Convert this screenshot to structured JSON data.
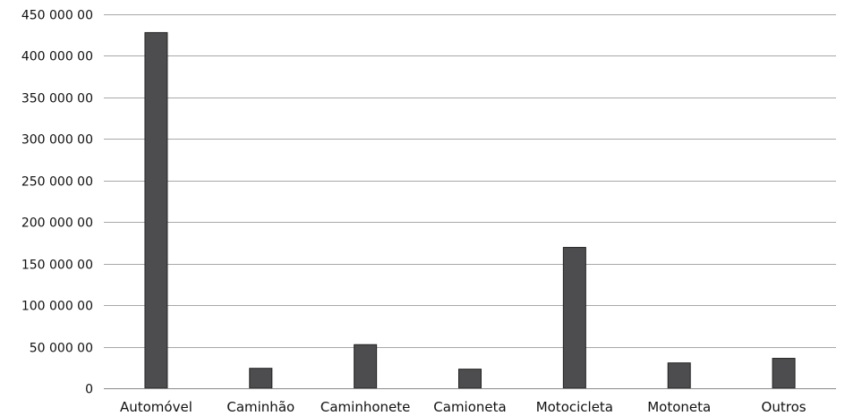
{
  "chart_data": {
    "type": "bar",
    "title": "",
    "xlabel": "",
    "ylabel": "",
    "categories": [
      "Automóvel",
      "Caminhão",
      "Caminhonete",
      "Camioneta",
      "Motocicleta",
      "Motoneta",
      "Outros"
    ],
    "values": [
      428000,
      24000,
      52500,
      23000,
      169500,
      30500,
      36000
    ],
    "ylim": [
      0,
      450000
    ],
    "yticks": [
      0,
      50000,
      100000,
      150000,
      200000,
      250000,
      300000,
      350000,
      400000,
      450000
    ],
    "ytick_labels": [
      "0",
      "50 000 00",
      "100 000 00",
      "150 000 00",
      "200 000 00",
      "250 000 00",
      "300 000 00",
      "350 000 00",
      "400 000 00",
      "450 000 00"
    ],
    "grid": true,
    "legend": "none",
    "bar_color": "#4d4d4f"
  }
}
